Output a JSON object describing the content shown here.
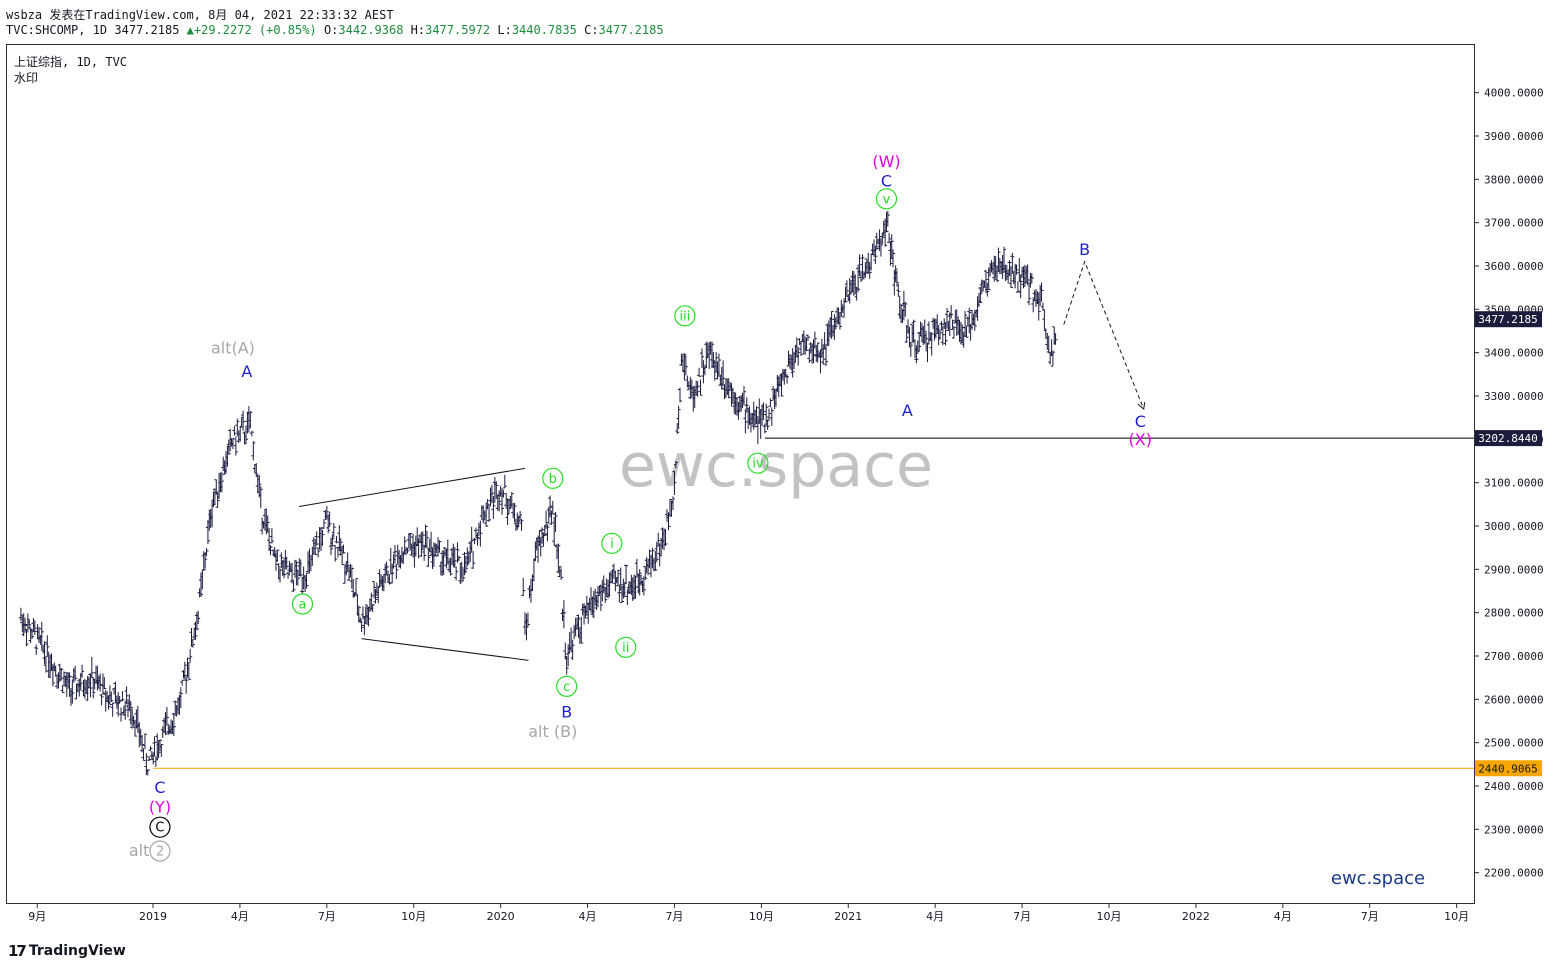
{
  "header": {
    "line1": "wsbza 发表在TradingView.com, 8月 04, 2021 22:33:32 AEST",
    "symbol": "TVC:SHCOMP, 1D",
    "last": "3477.2185",
    "change": "▲+29.2272 (+0.85%)",
    "o_label": "O:",
    "o": "3442.9368",
    "h_label": "H:",
    "h": "3477.5972",
    "l_label": "L:",
    "l": "3440.7835",
    "c_label": "C:",
    "c": "3477.2185"
  },
  "legend": {
    "title": "上证综指, 1D, TVC",
    "sub": "水印"
  },
  "watermark": "ewc.space",
  "brand_text": "ewc.space",
  "footer": {
    "logo": "17",
    "brand": "TradingView"
  },
  "colors": {
    "candles": "#1a1a40",
    "blue": "#1f1fd6",
    "magenta": "#e000e0",
    "green": "#22dd22",
    "gray": "#a6a6a6",
    "orange": "#f7a600",
    "price_box": "#1c1c3c"
  },
  "chart_data": {
    "type": "ohlc",
    "ylim": [
      2130,
      4110
    ],
    "y_ticks": [
      2200,
      2300,
      2400,
      2500,
      2600,
      2700,
      2800,
      2900,
      3000,
      3100,
      3200,
      3300,
      3400,
      3500,
      3600,
      3700,
      3800,
      3900,
      4000
    ],
    "y_tick_labels": [
      "2200.0000",
      "2300.0000",
      "2400.0000",
      "2500.0000",
      "2600.0000",
      "2700.0000",
      "2800.0000",
      "2900.0000",
      "3000.0000",
      "3100.0000",
      "3200.0000",
      "3300.0000",
      "3400.0000",
      "3500.0000",
      "3600.0000",
      "3700.0000",
      "3800.0000",
      "3900.0000",
      "4000.0000"
    ],
    "x_ticks": [
      {
        "label": "9月",
        "t": 2018.667
      },
      {
        "label": "2019",
        "t": 2019.0
      },
      {
        "label": "4月",
        "t": 2019.25
      },
      {
        "label": "7月",
        "t": 2019.5
      },
      {
        "label": "10月",
        "t": 2019.75
      },
      {
        "label": "2020",
        "t": 2020.0
      },
      {
        "label": "4月",
        "t": 2020.25
      },
      {
        "label": "7月",
        "t": 2020.5
      },
      {
        "label": "10月",
        "t": 2020.75
      },
      {
        "label": "2021",
        "t": 2021.0
      },
      {
        "label": "4月",
        "t": 2021.25
      },
      {
        "label": "7月",
        "t": 2021.5
      },
      {
        "label": "10月",
        "t": 2021.75
      },
      {
        "label": "2022",
        "t": 2022.0
      },
      {
        "label": "4月",
        "t": 2022.25
      },
      {
        "label": "7月",
        "t": 2022.5
      },
      {
        "label": "10月",
        "t": 2022.75
      }
    ],
    "price_path": [
      [
        2018.62,
        2790
      ],
      [
        2018.7,
        2700
      ],
      [
        2018.76,
        2620
      ],
      [
        2018.82,
        2650
      ],
      [
        2018.88,
        2600
      ],
      [
        2018.94,
        2580
      ],
      [
        2018.985,
        2450
      ],
      [
        2019.02,
        2500
      ],
      [
        2019.08,
        2600
      ],
      [
        2019.13,
        2800
      ],
      [
        2019.17,
        3050
      ],
      [
        2019.23,
        3200
      ],
      [
        2019.28,
        3230
      ],
      [
        2019.31,
        3050
      ],
      [
        2019.35,
        2920
      ],
      [
        2019.4,
        2880
      ],
      [
        2019.45,
        2900
      ],
      [
        2019.5,
        3010
      ],
      [
        2019.56,
        2910
      ],
      [
        2019.6,
        2780
      ],
      [
        2019.66,
        2870
      ],
      [
        2019.72,
        2950
      ],
      [
        2019.78,
        2960
      ],
      [
        2019.84,
        2920
      ],
      [
        2019.9,
        2900
      ],
      [
        2019.95,
        3030
      ],
      [
        2020.0,
        3090
      ],
      [
        2020.06,
        3000
      ],
      [
        2020.07,
        2750
      ],
      [
        2020.1,
        2930
      ],
      [
        2020.15,
        3040
      ],
      [
        2020.17,
        2900
      ],
      [
        2020.19,
        2700
      ],
      [
        2020.22,
        2760
      ],
      [
        2020.28,
        2840
      ],
      [
        2020.33,
        2870
      ],
      [
        2020.38,
        2860
      ],
      [
        2020.42,
        2900
      ],
      [
        2020.47,
        2970
      ],
      [
        2020.5,
        3080
      ],
      [
        2020.52,
        3400
      ],
      [
        2020.55,
        3300
      ],
      [
        2020.6,
        3400
      ],
      [
        2020.66,
        3320
      ],
      [
        2020.72,
        3250
      ],
      [
        2020.76,
        3240
      ],
      [
        2020.8,
        3320
      ],
      [
        2020.86,
        3420
      ],
      [
        2020.92,
        3400
      ],
      [
        2020.96,
        3460
      ],
      [
        2021.02,
        3560
      ],
      [
        2021.07,
        3620
      ],
      [
        2021.11,
        3700
      ],
      [
        2021.14,
        3550
      ],
      [
        2021.18,
        3420
      ],
      [
        2021.22,
        3430
      ],
      [
        2021.28,
        3470
      ],
      [
        2021.34,
        3440
      ],
      [
        2021.38,
        3530
      ],
      [
        2021.42,
        3600
      ],
      [
        2021.48,
        3580
      ],
      [
        2021.52,
        3560
      ],
      [
        2021.56,
        3510
      ],
      [
        2021.585,
        3390
      ],
      [
        2021.6,
        3477
      ]
    ],
    "horizontal_lines": [
      {
        "value": 3202.844,
        "label": "3202.8440",
        "color": "#000000"
      },
      {
        "value": 2440.9065,
        "label": "2440.9065",
        "color": "#f7a600"
      }
    ],
    "last_price": {
      "value": 3477.2185,
      "label": "3477.2185"
    },
    "trendlines": [
      {
        "t1": 2019.42,
        "v1": 3045,
        "t2": 2020.07,
        "v2": 3133
      },
      {
        "t1": 2019.6,
        "v1": 2740,
        "t2": 2020.08,
        "v2": 2690
      }
    ],
    "projection": [
      [
        2021.62,
        3465
      ],
      [
        2021.68,
        3610
      ],
      [
        2021.85,
        3270
      ]
    ],
    "wave_labels": [
      {
        "text": "alt(A)",
        "t": 2019.23,
        "v": 3410,
        "color": "gray"
      },
      {
        "text": "A",
        "t": 2019.27,
        "v": 3355,
        "color": "blue"
      },
      {
        "text": "a",
        "t": 2019.43,
        "v": 2820,
        "color": "green",
        "circle": true
      },
      {
        "text": "b",
        "t": 2020.15,
        "v": 3110,
        "color": "green",
        "circle": true
      },
      {
        "text": "c",
        "t": 2020.19,
        "v": 2630,
        "color": "green",
        "circle": true
      },
      {
        "text": "B",
        "t": 2020.19,
        "v": 2570,
        "color": "blue"
      },
      {
        "text": "alt (B)",
        "t": 2020.15,
        "v": 2525,
        "color": "gray"
      },
      {
        "text": "i",
        "t": 2020.32,
        "v": 2960,
        "color": "green",
        "circle": true
      },
      {
        "text": "ii",
        "t": 2020.36,
        "v": 2720,
        "color": "green",
        "circle": true
      },
      {
        "text": "iii",
        "t": 2020.53,
        "v": 3485,
        "color": "green",
        "circle": true
      },
      {
        "text": "iv",
        "t": 2020.74,
        "v": 3145,
        "color": "green",
        "circle": true
      },
      {
        "text": "(W)",
        "t": 2021.11,
        "v": 3840,
        "color": "magenta"
      },
      {
        "text": "C",
        "t": 2021.11,
        "v": 3795,
        "color": "blue"
      },
      {
        "text": "v",
        "t": 2021.11,
        "v": 3755,
        "color": "green",
        "circle": true
      },
      {
        "text": "A",
        "t": 2021.17,
        "v": 3265,
        "color": "blue"
      },
      {
        "text": "B",
        "t": 2021.68,
        "v": 3637,
        "color": "blue"
      },
      {
        "text": "C",
        "t": 2021.84,
        "v": 3240,
        "color": "blue"
      },
      {
        "text": "(X)",
        "t": 2021.84,
        "v": 3198,
        "color": "magenta"
      },
      {
        "text": "C",
        "t": 2019.02,
        "v": 2395,
        "color": "blue"
      },
      {
        "text": "(Y)",
        "t": 2019.02,
        "v": 2350,
        "color": "magenta"
      },
      {
        "text": "C",
        "t": 2019.02,
        "v": 2305,
        "color": "black",
        "circle": true
      },
      {
        "text": "alt",
        "t": 2018.96,
        "v": 2250,
        "color": "gray"
      },
      {
        "text": "2",
        "t": 2019.02,
        "v": 2250,
        "color": "gray",
        "circle": true
      }
    ]
  }
}
